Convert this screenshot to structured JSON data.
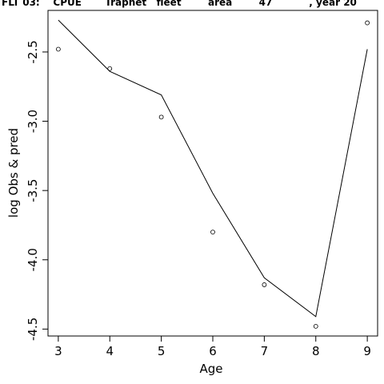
{
  "chart_data": {
    "type": "line",
    "title": "FLT 03:    CPUE       Trapnet   fleet        area        47           , year 20",
    "xlabel": "Age",
    "ylabel": "log Obs & pred",
    "xlim": [
      2.8,
      9.2
    ],
    "ylim": [
      -4.55,
      -2.2
    ],
    "x_ticks": [
      3,
      4,
      5,
      6,
      7,
      8,
      9
    ],
    "y_ticks": [
      -4.5,
      -4.0,
      -3.5,
      -3.0,
      -2.5
    ],
    "y_tick_labels": [
      "-4.5",
      "-4.0",
      "-3.5",
      "-3.0",
      "-2.5"
    ],
    "series": [
      {
        "type": "line",
        "x": [
          3,
          4,
          5,
          6,
          7,
          8,
          9
        ],
        "y": [
          -2.27,
          -2.64,
          -2.81,
          -3.52,
          -4.13,
          -4.41,
          -2.48
        ]
      },
      {
        "type": "scatter",
        "x": [
          3,
          4,
          5,
          6,
          7,
          8,
          9
        ],
        "y": [
          -2.48,
          -2.62,
          -2.97,
          -3.8,
          -4.18,
          -4.48,
          -2.29
        ]
      }
    ]
  }
}
